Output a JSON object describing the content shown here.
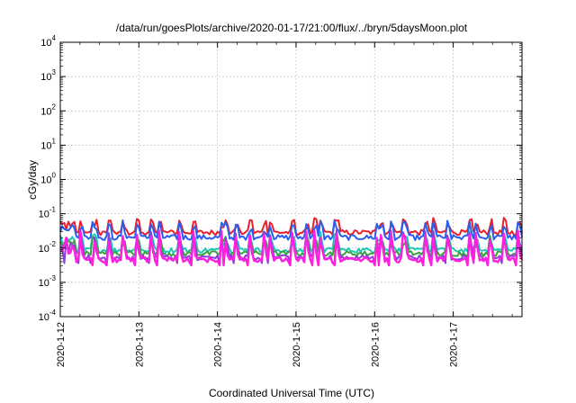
{
  "chart_data": {
    "type": "line",
    "title": "/data/run/goesPlots/archive/2020-01-17/21:00/flux/../bryn/5daysMoon.plot",
    "xlabel": "Coordinated Universal Time (UTC)",
    "ylabel": "cGy/day",
    "yscale": "log",
    "ylim": [
      0.0001,
      10000
    ],
    "xlim": [
      "2020-01-12 00:00",
      "2020-01-17 21:00"
    ],
    "x_ticks": [
      "2020-1-12",
      "2020-1-13",
      "2020-1-14",
      "2020-1-15",
      "2020-1-16",
      "2020-1-17"
    ],
    "y_ticks": [
      {
        "base": "10",
        "exp": "-4"
      },
      {
        "base": "10",
        "exp": "-3"
      },
      {
        "base": "10",
        "exp": "-2"
      },
      {
        "base": "10",
        "exp": "-1"
      },
      {
        "base": "10",
        "exp": "0"
      },
      {
        "base": "10",
        "exp": "1"
      },
      {
        "base": "10",
        "exp": "2"
      },
      {
        "base": "10",
        "exp": "3"
      },
      {
        "base": "10",
        "exp": "4"
      }
    ],
    "grid": true,
    "series": [
      {
        "color": "#e8202a",
        "baseline": 0.028,
        "spike": 0.07
      },
      {
        "color": "#2a5ef0",
        "baseline": 0.02,
        "spike": 0.06
      },
      {
        "color": "#19c9b4",
        "baseline": 0.0085,
        "spike": 0.028
      },
      {
        "color": "#3aa040",
        "baseline": 0.0068,
        "spike": 0.022
      },
      {
        "color": "#8b3fd6",
        "baseline": 0.0052,
        "spike": 0.03
      },
      {
        "color": "#ff1fe0",
        "baseline": 0.0045,
        "spike": 0.03
      }
    ]
  }
}
